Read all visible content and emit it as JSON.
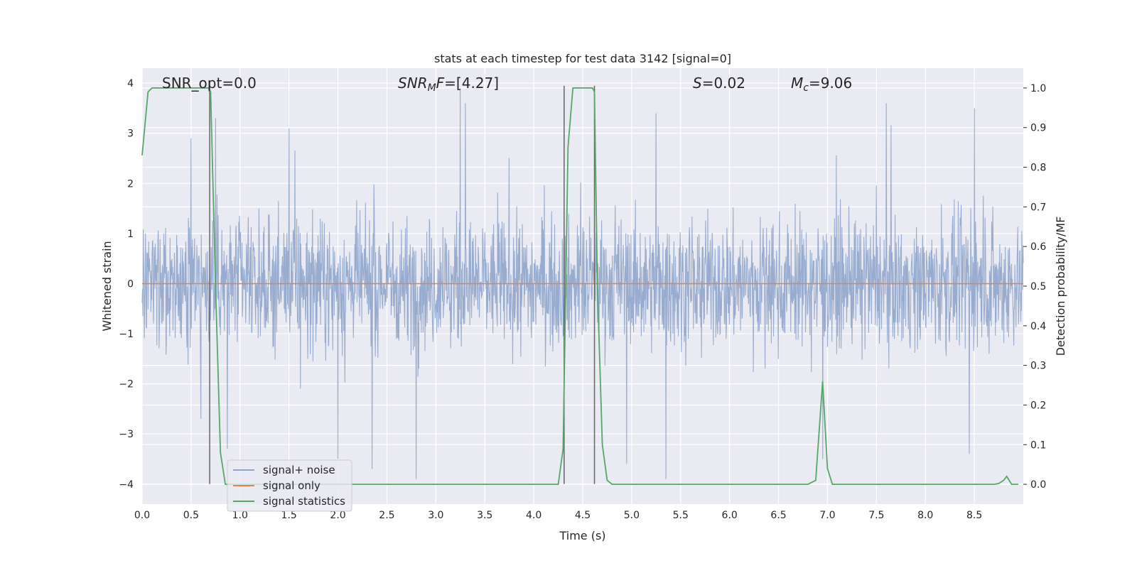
{
  "chart_data": {
    "type": "line",
    "title": "stats at each timestep for test data 3142 [signal=0]",
    "xlabel": "Time (s)",
    "ylabel": "Whitened strain",
    "y2label": "Detection probability/MF",
    "xlim": [
      0.0,
      9.0
    ],
    "ylim": [
      -4.4,
      4.3
    ],
    "y2lim": [
      -0.05,
      1.05
    ],
    "xticks": [
      "0.0",
      "0.5",
      "1.0",
      "1.5",
      "2.0",
      "2.5",
      "3.0",
      "3.5",
      "4.0",
      "4.5",
      "5.0",
      "5.5",
      "6.0",
      "6.5",
      "7.0",
      "7.5",
      "8.0",
      "8.5"
    ],
    "xtick_values": [
      0.0,
      0.5,
      1.0,
      1.5,
      2.0,
      2.5,
      3.0,
      3.5,
      4.0,
      4.5,
      5.0,
      5.5,
      6.0,
      6.5,
      7.0,
      7.5,
      8.0,
      8.5
    ],
    "yticks": [
      "4",
      "3",
      "2",
      "1",
      "0",
      "−1",
      "−2",
      "−3",
      "−4"
    ],
    "ytick_values": [
      4,
      3,
      2,
      1,
      0,
      -1,
      -2,
      -3,
      -4
    ],
    "y2ticks": [
      "1.0",
      "0.9",
      "0.8",
      "0.7",
      "0.6",
      "0.5",
      "0.4",
      "0.3",
      "0.2",
      "0.1",
      "0.0"
    ],
    "y2tick_values": [
      1.0,
      0.9,
      0.8,
      0.7,
      0.6,
      0.5,
      0.4,
      0.3,
      0.2,
      0.1,
      0.0
    ],
    "grid": true,
    "legend_position": "lower-left",
    "annotations": {
      "snr_opt": "SNR_opt=0.0",
      "snr_mf": "=[4.27]",
      "snr_mf_sym": "SNR",
      "snr_mf_sub": "M",
      "snr_mf_sym2": "F",
      "s_sym": "S",
      "s_val": "=0.02",
      "mc_sym": "M",
      "mc_sub": "c",
      "mc_val": "=9.06"
    },
    "series": [
      {
        "name": "signal+ noise",
        "color": "#8fa5cc",
        "style": "dense noisy trace (amplitude ~±2, spikes to ~±3.9)",
        "envelope_abs_max": 3.9,
        "sample_spikes": [
          {
            "x": 0.5,
            "y": 2.9
          },
          {
            "x": 0.6,
            "y": -2.7
          },
          {
            "x": 0.75,
            "y": 3.3
          },
          {
            "x": 0.87,
            "y": -3.3
          },
          {
            "x": 1.5,
            "y": 3.1
          },
          {
            "x": 2.0,
            "y": -3.5
          },
          {
            "x": 2.35,
            "y": -3.7
          },
          {
            "x": 2.8,
            "y": -3.9
          },
          {
            "x": 3.25,
            "y": 3.9
          },
          {
            "x": 3.3,
            "y": 3.6
          },
          {
            "x": 4.95,
            "y": -3.6
          },
          {
            "x": 5.25,
            "y": 3.4
          },
          {
            "x": 5.35,
            "y": -3.9
          },
          {
            "x": 6.95,
            "y": -3.5
          },
          {
            "x": 7.6,
            "y": 3.6
          },
          {
            "x": 8.5,
            "y": 3.5
          },
          {
            "x": 8.45,
            "y": -3.4
          }
        ]
      },
      {
        "name": "signal only",
        "color": "#dd8452",
        "x": [
          0.0,
          9.0
        ],
        "y": [
          0.0,
          0.0
        ]
      },
      {
        "name": "signal statistics",
        "color": "#55a868",
        "axis": "right",
        "x": [
          0.0,
          0.06,
          0.1,
          0.2,
          0.4,
          0.6,
          0.68,
          0.7,
          0.75,
          0.8,
          0.85,
          1.0,
          2.0,
          3.0,
          3.2,
          3.3,
          4.0,
          4.25,
          4.3,
          4.35,
          4.4,
          4.5,
          4.6,
          4.62,
          4.65,
          4.7,
          4.75,
          4.8,
          5.0,
          6.0,
          6.8,
          6.88,
          6.95,
          7.0,
          7.05,
          7.5,
          8.0,
          8.5,
          8.7,
          8.75,
          8.8,
          8.83,
          8.88,
          8.95
        ],
        "y": [
          0.83,
          0.99,
          1.0,
          1.0,
          1.0,
          1.0,
          1.0,
          0.99,
          0.5,
          0.08,
          0.0,
          0.0,
          0.0,
          0.0,
          0.0,
          0.0,
          0.0,
          0.0,
          0.09,
          0.85,
          1.0,
          1.0,
          1.0,
          0.99,
          0.5,
          0.1,
          0.01,
          0.0,
          0.0,
          0.0,
          0.0,
          0.01,
          0.26,
          0.04,
          0.0,
          0.0,
          0.0,
          0.0,
          0.0,
          0.002,
          0.01,
          0.02,
          0.0,
          0.0
        ]
      }
    ],
    "vertical_markers": [
      {
        "x": 0.69,
        "y0": -4.0,
        "y1": 4.0,
        "color": "#666666"
      },
      {
        "x": 4.31,
        "y0": -4.0,
        "y1": 3.95,
        "color": "#666666"
      },
      {
        "x": 4.62,
        "y0": -4.0,
        "y1": 3.95,
        "color": "#666666"
      }
    ]
  }
}
